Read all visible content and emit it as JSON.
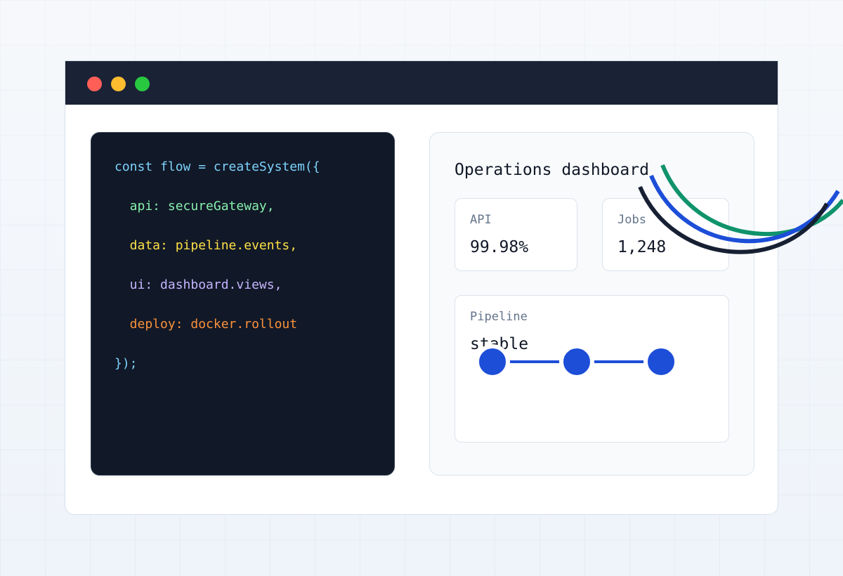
{
  "window": {
    "controls": [
      {
        "name": "close-dot",
        "color": "#ff5f57"
      },
      {
        "name": "minimize-dot",
        "color": "#febc2e"
      },
      {
        "name": "maximize-dot",
        "color": "#28c840"
      }
    ]
  },
  "code": {
    "lines": [
      {
        "text": "const flow = createSystem({",
        "color": "#7dd3fc"
      },
      {
        "text": "  api: secureGateway,",
        "color": "#86efac"
      },
      {
        "text": "  data: pipeline.events,",
        "color": "#fde047"
      },
      {
        "text": "  ui: dashboard.views,",
        "color": "#c4b5fd"
      },
      {
        "text": "  deploy: docker.rollout",
        "color": "#fb923c"
      },
      {
        "text": "});",
        "color": "#7dd3fc"
      }
    ]
  },
  "dashboard": {
    "title": "Operations dashboard",
    "api_card": {
      "label": "API",
      "value": "99.98%"
    },
    "jobs_card": {
      "label": "Jobs",
      "value": "1,248"
    },
    "pipeline_card": {
      "label": "Pipeline",
      "value": "stable"
    },
    "pipeline_nodes": 3,
    "accent_color": "#1d4ed8"
  },
  "decoration": {
    "arc_colors": [
      "#10936b",
      "#1d4ed8",
      "#172033"
    ]
  }
}
